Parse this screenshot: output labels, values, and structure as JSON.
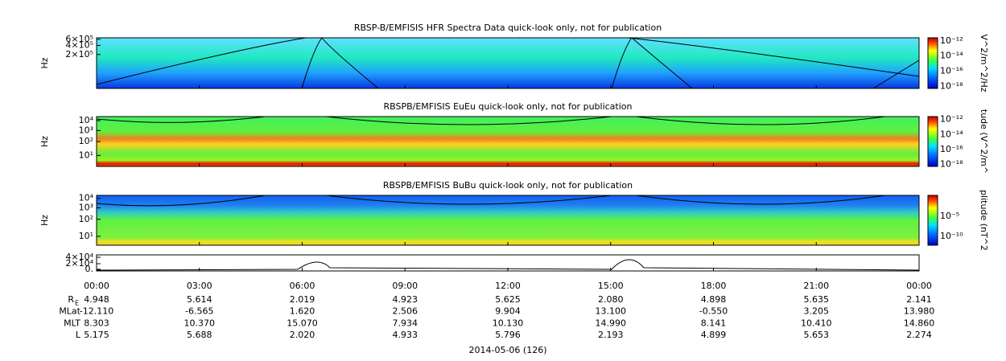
{
  "panels": [
    {
      "title": "RBSP-B/EMFISIS  HFR Spectra Data quick-look only, not for publication",
      "ylabel": "Hz",
      "yticks": [
        "6×10⁵",
        "4×10⁵",
        "2×10⁵"
      ],
      "cbar_label": "V^2/m^2/Hz",
      "cbar_ticks": [
        "10⁻¹²",
        "10⁻¹⁴",
        "10⁻¹⁶",
        "10⁻¹⁸"
      ]
    },
    {
      "title": "RBSPB/EMFISIS  EuEu quick-look only, not for publication",
      "ylabel": "Hz",
      "yticks": [
        "10⁴",
        "10³",
        "10²",
        "10¹"
      ],
      "cbar_label": "tude (V^2/m^",
      "cbar_ticks": [
        "10⁻¹²",
        "10⁻¹⁴",
        "10⁻¹⁶",
        "10⁻¹⁸"
      ]
    },
    {
      "title": "RBSPB/EMFISIS  BuBu quick-look only, not for publication",
      "ylabel": "Hz",
      "yticks": [
        "10⁴",
        "10³",
        "10²",
        "10¹"
      ],
      "cbar_label": "plitude (nT^2",
      "cbar_ticks": [
        "10⁻⁵",
        "10⁻¹⁰"
      ]
    },
    {
      "yticks": [
        "4×10⁴",
        "2×10⁴",
        "0."
      ]
    }
  ],
  "times": [
    "00:00",
    "03:00",
    "06:00",
    "09:00",
    "12:00",
    "15:00",
    "18:00",
    "21:00",
    "00:00"
  ],
  "rows": [
    {
      "label": "R",
      "sub": "E",
      "values": [
        "4.948",
        "5.614",
        "2.019",
        "4.923",
        "5.625",
        "2.080",
        "4.898",
        "5.635",
        "2.141"
      ]
    },
    {
      "label": "MLat",
      "values": [
        "-12.110",
        "-6.565",
        "1.620",
        "2.506",
        "9.904",
        "13.100",
        "-0.550",
        "3.205",
        "13.980"
      ]
    },
    {
      "label": "MLT",
      "values": [
        "8.303",
        "10.370",
        "15.070",
        "7.934",
        "10.130",
        "14.990",
        "8.141",
        "10.410",
        "14.860"
      ]
    },
    {
      "label": "L",
      "values": [
        "5.175",
        "5.688",
        "2.020",
        "4.933",
        "5.796",
        "2.193",
        "4.899",
        "5.653",
        "2.274"
      ]
    }
  ],
  "date": "2014-05-06 (126)"
}
